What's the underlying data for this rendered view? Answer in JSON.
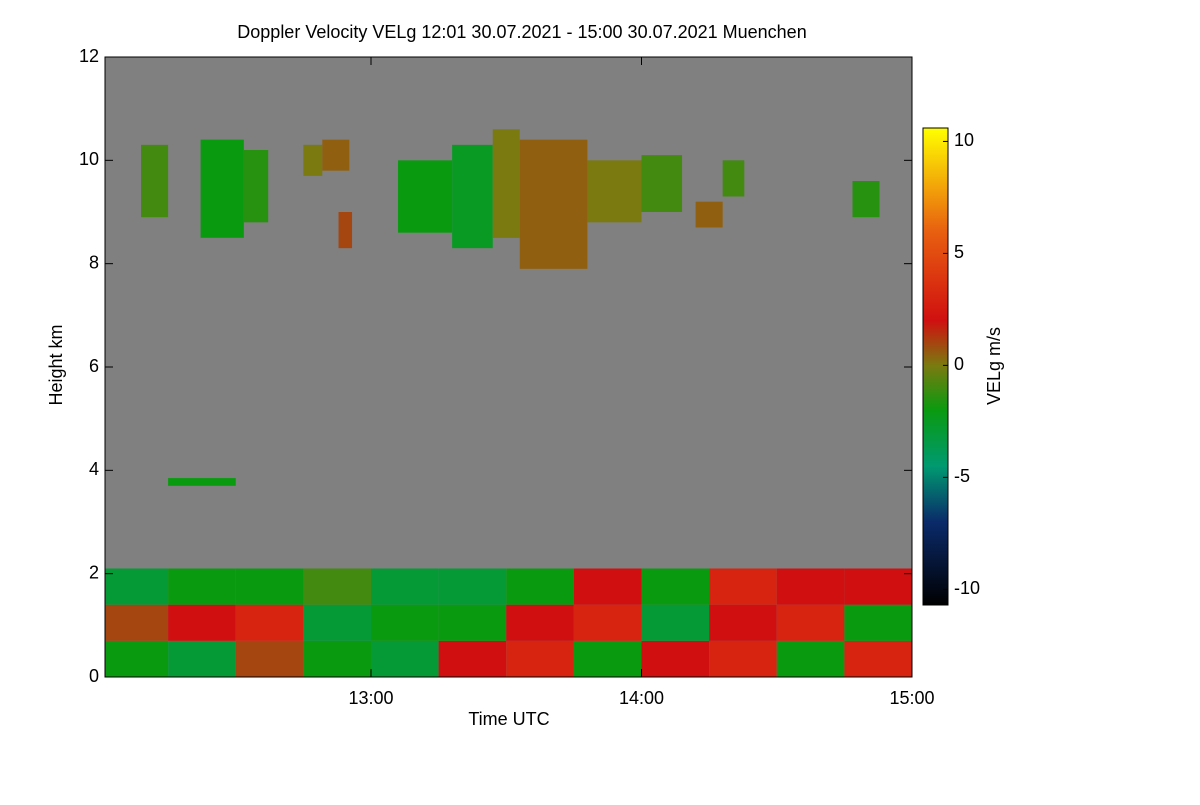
{
  "chart_data": {
    "type": "heatmap",
    "title": "Doppler Velocity VELg   12:01 30.07.2021 - 15:00 30.07.2021 Muenchen",
    "xlabel": "Time UTC",
    "ylabel": "Height km",
    "colorbar_label": "VELg m/s",
    "xlim": [
      12.0167,
      15.0
    ],
    "xticks": [
      {
        "value": 13,
        "label": "13:00"
      },
      {
        "value": 14,
        "label": "14:00"
      },
      {
        "value": 15,
        "label": "15:00"
      }
    ],
    "ylim": [
      0,
      12
    ],
    "yticks": [
      0,
      2,
      4,
      6,
      8,
      10,
      12
    ],
    "clim": [
      -10.7,
      10.6
    ],
    "cticks": [
      -10,
      -5,
      0,
      5,
      10
    ],
    "background": "#808080",
    "colorscale": [
      [
        -10.7,
        "#000000"
      ],
      [
        -7,
        "#0a2a6a"
      ],
      [
        -4.5,
        "#009a70"
      ],
      [
        -2,
        "#0a9a10"
      ],
      [
        0,
        "#7a7a10"
      ],
      [
        2,
        "#d01010"
      ],
      [
        6,
        "#e86010"
      ],
      [
        10.6,
        "#ffff00"
      ]
    ],
    "cells": [
      {
        "x": [
          12.15,
          12.25
        ],
        "y": [
          8.9,
          10.3
        ],
        "value": -1
      },
      {
        "x": [
          12.37,
          12.53
        ],
        "y": [
          8.5,
          10.4
        ],
        "value": -2
      },
      {
        "x": [
          12.53,
          12.62
        ],
        "y": [
          8.8,
          10.2
        ],
        "value": -1.5
      },
      {
        "x": [
          12.75,
          12.82
        ],
        "y": [
          9.7,
          10.3
        ],
        "value": 0
      },
      {
        "x": [
          12.82,
          12.92
        ],
        "y": [
          9.8,
          10.4
        ],
        "value": 0.5
      },
      {
        "x": [
          12.88,
          12.93
        ],
        "y": [
          8.3,
          9.0
        ],
        "value": 1
      },
      {
        "x": [
          13.1,
          13.3
        ],
        "y": [
          8.6,
          10.0
        ],
        "value": -2
      },
      {
        "x": [
          13.3,
          13.45
        ],
        "y": [
          8.3,
          10.3
        ],
        "value": -2.5
      },
      {
        "x": [
          13.45,
          13.55
        ],
        "y": [
          8.5,
          10.6
        ],
        "value": 0
      },
      {
        "x": [
          13.55,
          13.8
        ],
        "y": [
          7.9,
          10.4
        ],
        "value": 0.5
      },
      {
        "x": [
          13.8,
          14.0
        ],
        "y": [
          8.8,
          10.0
        ],
        "value": 0
      },
      {
        "x": [
          14.0,
          14.15
        ],
        "y": [
          9.0,
          10.1
        ],
        "value": -1
      },
      {
        "x": [
          14.2,
          14.3
        ],
        "y": [
          8.7,
          9.2
        ],
        "value": 0.5
      },
      {
        "x": [
          14.3,
          14.38
        ],
        "y": [
          9.3,
          10.0
        ],
        "value": -1
      },
      {
        "x": [
          14.78,
          14.88
        ],
        "y": [
          8.9,
          9.6
        ],
        "value": -1.5
      },
      {
        "x": [
          12.25,
          12.5
        ],
        "y": [
          3.7,
          3.85
        ],
        "value": -2
      },
      {
        "x": [
          12.0167,
          12.25
        ],
        "y": [
          0,
          0.7
        ],
        "value": -2
      },
      {
        "x": [
          12.0167,
          12.25
        ],
        "y": [
          0.7,
          1.4
        ],
        "value": 1
      },
      {
        "x": [
          12.0167,
          12.25
        ],
        "y": [
          1.4,
          2.1
        ],
        "value": -3
      },
      {
        "x": [
          12.25,
          12.5
        ],
        "y": [
          0,
          0.7
        ],
        "value": -3
      },
      {
        "x": [
          12.25,
          12.5
        ],
        "y": [
          0.7,
          1.4
        ],
        "value": 2
      },
      {
        "x": [
          12.25,
          12.5
        ],
        "y": [
          1.4,
          2.1
        ],
        "value": -2
      },
      {
        "x": [
          12.5,
          12.75
        ],
        "y": [
          0,
          0.7
        ],
        "value": 1
      },
      {
        "x": [
          12.5,
          12.75
        ],
        "y": [
          0.7,
          1.4
        ],
        "value": 3
      },
      {
        "x": [
          12.5,
          12.75
        ],
        "y": [
          1.4,
          2.1
        ],
        "value": -2
      },
      {
        "x": [
          12.75,
          13.0
        ],
        "y": [
          0,
          0.7
        ],
        "value": -2
      },
      {
        "x": [
          12.75,
          13.0
        ],
        "y": [
          0.7,
          1.4
        ],
        "value": -3
      },
      {
        "x": [
          12.75,
          13.0
        ],
        "y": [
          1.4,
          2.1
        ],
        "value": -1
      },
      {
        "x": [
          13.0,
          13.25
        ],
        "y": [
          0,
          0.7
        ],
        "value": -3
      },
      {
        "x": [
          13.0,
          13.25
        ],
        "y": [
          0.7,
          1.4
        ],
        "value": -2
      },
      {
        "x": [
          13.0,
          13.25
        ],
        "y": [
          1.4,
          2.1
        ],
        "value": -3
      },
      {
        "x": [
          13.25,
          13.5
        ],
        "y": [
          0,
          0.7
        ],
        "value": 2
      },
      {
        "x": [
          13.25,
          13.5
        ],
        "y": [
          0.7,
          1.4
        ],
        "value": -2
      },
      {
        "x": [
          13.25,
          13.5
        ],
        "y": [
          1.4,
          2.1
        ],
        "value": -3
      },
      {
        "x": [
          13.5,
          13.75
        ],
        "y": [
          0,
          0.7
        ],
        "value": 3
      },
      {
        "x": [
          13.5,
          13.75
        ],
        "y": [
          0.7,
          1.4
        ],
        "value": 2
      },
      {
        "x": [
          13.5,
          13.75
        ],
        "y": [
          1.4,
          2.1
        ],
        "value": -2
      },
      {
        "x": [
          13.75,
          14.0
        ],
        "y": [
          0,
          0.7
        ],
        "value": -2
      },
      {
        "x": [
          13.75,
          14.0
        ],
        "y": [
          0.7,
          1.4
        ],
        "value": 3
      },
      {
        "x": [
          13.75,
          14.0
        ],
        "y": [
          1.4,
          2.1
        ],
        "value": 2
      },
      {
        "x": [
          14.0,
          14.25
        ],
        "y": [
          0,
          0.7
        ],
        "value": 2
      },
      {
        "x": [
          14.0,
          14.25
        ],
        "y": [
          0.7,
          1.4
        ],
        "value": -3
      },
      {
        "x": [
          14.0,
          14.25
        ],
        "y": [
          1.4,
          2.1
        ],
        "value": -2
      },
      {
        "x": [
          14.25,
          14.5
        ],
        "y": [
          0,
          0.7
        ],
        "value": 3
      },
      {
        "x": [
          14.25,
          14.5
        ],
        "y": [
          0.7,
          1.4
        ],
        "value": 2
      },
      {
        "x": [
          14.25,
          14.5
        ],
        "y": [
          1.4,
          2.1
        ],
        "value": 3
      },
      {
        "x": [
          14.5,
          14.75
        ],
        "y": [
          0,
          0.7
        ],
        "value": -2
      },
      {
        "x": [
          14.5,
          14.75
        ],
        "y": [
          0.7,
          1.4
        ],
        "value": 3
      },
      {
        "x": [
          14.5,
          14.75
        ],
        "y": [
          1.4,
          2.1
        ],
        "value": 2
      },
      {
        "x": [
          14.75,
          15.0
        ],
        "y": [
          0,
          0.7
        ],
        "value": 3
      },
      {
        "x": [
          14.75,
          15.0
        ],
        "y": [
          0.7,
          1.4
        ],
        "value": -2
      },
      {
        "x": [
          14.75,
          15.0
        ],
        "y": [
          1.4,
          2.1
        ],
        "value": 2
      }
    ]
  }
}
